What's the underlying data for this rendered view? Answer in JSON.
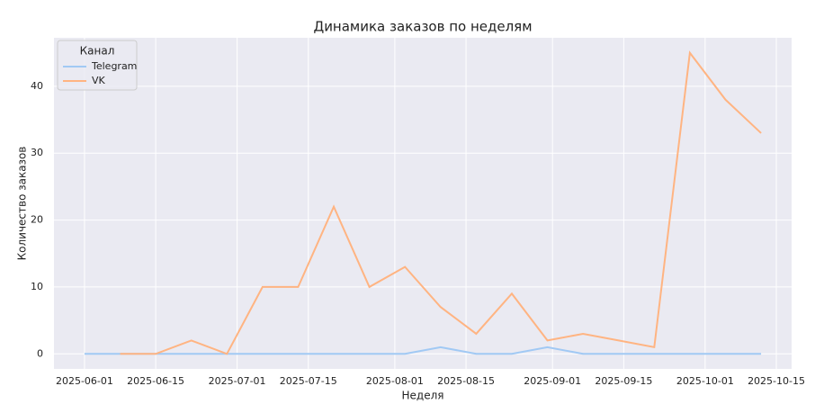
{
  "chart_data": {
    "type": "line",
    "title": "Динамика заказов по неделям",
    "x_label": "Неделя",
    "y_label": "Количество заказов",
    "x": [
      "2025-06-01",
      "2025-06-08",
      "2025-06-15",
      "2025-06-22",
      "2025-06-29",
      "2025-07-06",
      "2025-07-13",
      "2025-07-20",
      "2025-07-27",
      "2025-08-03",
      "2025-08-10",
      "2025-08-17",
      "2025-08-24",
      "2025-08-31",
      "2025-09-07",
      "2025-09-14",
      "2025-09-21",
      "2025-09-28",
      "2025-10-05",
      "2025-10-12"
    ],
    "series": [
      {
        "name": "Telegram",
        "color": "#a1c9f4",
        "values": [
          0,
          0,
          0,
          0,
          0,
          0,
          0,
          0,
          0,
          0,
          1,
          0,
          0,
          1,
          0,
          0,
          0,
          0,
          0,
          0
        ]
      },
      {
        "name": "VK",
        "color": "#ffb482",
        "values": [
          null,
          0,
          0,
          2,
          0,
          10,
          10,
          22,
          10,
          13,
          7,
          3,
          9,
          2,
          3,
          2,
          1,
          45,
          38,
          33
        ]
      }
    ],
    "legend_title": "Канал",
    "legend": "upper left",
    "grid": true,
    "xlim": [
      "2025-05-26",
      "2025-10-18"
    ],
    "xticks": [
      "2025-06-01",
      "2025-06-15",
      "2025-07-01",
      "2025-07-15",
      "2025-08-01",
      "2025-08-15",
      "2025-09-01",
      "2025-09-15",
      "2025-10-01",
      "2025-10-15"
    ],
    "ylim": [
      -2.25,
      47.25
    ],
    "yticks": [
      0,
      10,
      20,
      30,
      40
    ]
  }
}
